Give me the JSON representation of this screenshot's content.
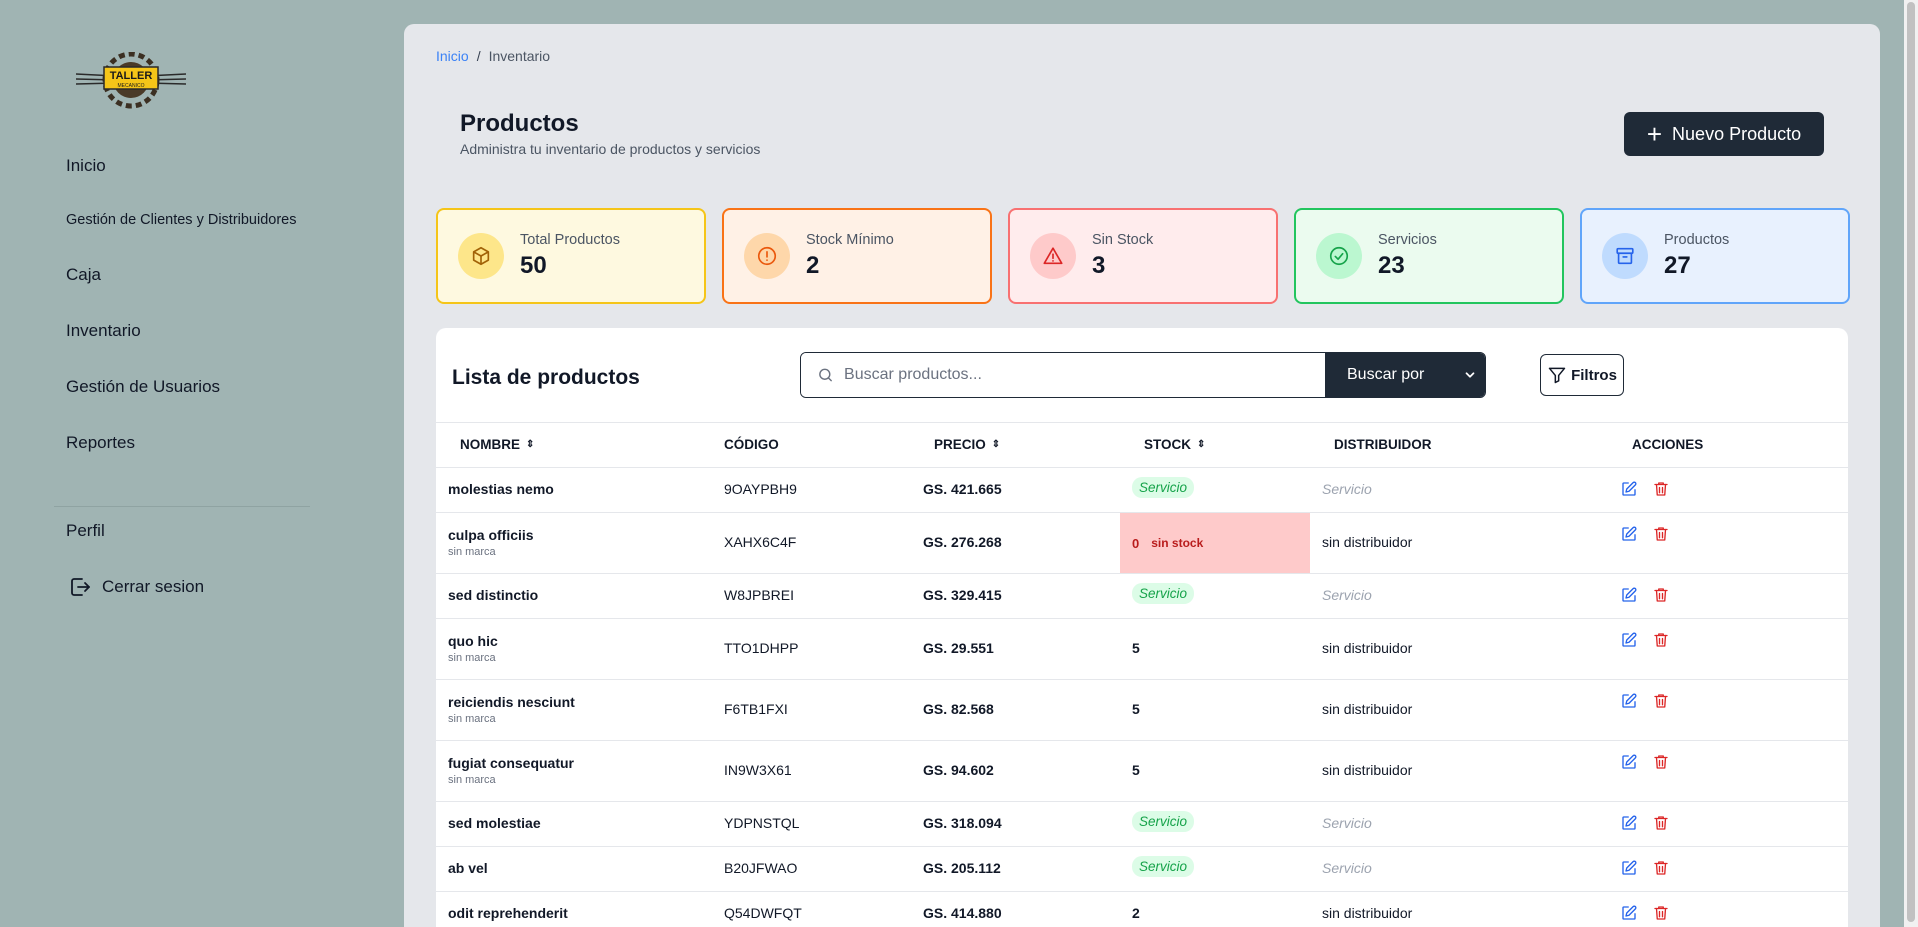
{
  "sidebar": {
    "logo": {
      "line1": "TALLER",
      "line2": "MECANICO"
    },
    "items": [
      {
        "label": "Inicio"
      },
      {
        "label": "Gestión de Clientes y Distribuidores"
      },
      {
        "label": "Caja"
      },
      {
        "label": "Inventario"
      },
      {
        "label": "Gestión de Usuarios"
      },
      {
        "label": "Reportes"
      }
    ],
    "profile_label": "Perfil",
    "logout_label": "Cerrar sesion"
  },
  "breadcrumb": {
    "home": "Inicio",
    "separator": "/",
    "current": "Inventario"
  },
  "header": {
    "title": "Productos",
    "subtitle": "Administra tu inventario de productos y servicios",
    "new_button_label": "Nuevo Producto"
  },
  "stats": [
    {
      "label": "Total Productos",
      "value": "50",
      "icon": "cube-icon",
      "color": "#f5c518"
    },
    {
      "label": "Stock Mínimo",
      "value": "2",
      "icon": "alert-circle-icon",
      "color": "#f97316"
    },
    {
      "label": "Sin Stock",
      "value": "3",
      "icon": "warning-triangle-icon",
      "color": "#ef4444"
    },
    {
      "label": "Servicios",
      "value": "23",
      "icon": "check-circle-icon",
      "color": "#22c55e"
    },
    {
      "label": "Productos",
      "value": "27",
      "icon": "archive-box-icon",
      "color": "#60a5fa"
    }
  ],
  "list": {
    "title": "Lista de productos",
    "search_placeholder": "Buscar productos...",
    "search_by_label": "Buscar por",
    "filters_label": "Filtros"
  },
  "table": {
    "columns": [
      "Nombre",
      "Código",
      "Precio",
      "Stock",
      "Distribuidor",
      "Acciones"
    ],
    "rows": [
      {
        "name": "molestias nemo",
        "brand": "",
        "code": "9OAYPBH9",
        "price": "GS. 421.665",
        "stock": "Servicio",
        "distributor": "Servicio",
        "type": "service"
      },
      {
        "name": "culpa officiis",
        "brand": "sin marca",
        "code": "XAHX6C4F",
        "price": "GS. 276.268",
        "stock": "0",
        "stock_note": "sin stock",
        "distributor": "sin distribuidor",
        "type": "nostock"
      },
      {
        "name": "sed distinctio",
        "brand": "",
        "code": "W8JPBREI",
        "price": "GS. 329.415",
        "stock": "Servicio",
        "distributor": "Servicio",
        "type": "service"
      },
      {
        "name": "quo hic",
        "brand": "sin marca",
        "code": "TTO1DHPP",
        "price": "GS. 29.551",
        "stock": "5",
        "distributor": "sin distribuidor",
        "type": "product"
      },
      {
        "name": "reiciendis nesciunt",
        "brand": "sin marca",
        "code": "F6TB1FXI",
        "price": "GS. 82.568",
        "stock": "5",
        "distributor": "sin distribuidor",
        "type": "product"
      },
      {
        "name": "fugiat consequatur",
        "brand": "sin marca",
        "code": "IN9W3X61",
        "price": "GS. 94.602",
        "stock": "5",
        "distributor": "sin distribuidor",
        "type": "product"
      },
      {
        "name": "sed molestiae",
        "brand": "",
        "code": "YDPNSTQL",
        "price": "GS. 318.094",
        "stock": "Servicio",
        "distributor": "Servicio",
        "type": "service"
      },
      {
        "name": "ab vel",
        "brand": "",
        "code": "B20JFWAO",
        "price": "GS. 205.112",
        "stock": "Servicio",
        "distributor": "Servicio",
        "type": "service"
      },
      {
        "name": "odit reprehenderit",
        "brand": "",
        "code": "Q54DWFQT",
        "price": "GS. 414.880",
        "stock": "2",
        "distributor": "sin distribuidor",
        "type": "product"
      }
    ]
  }
}
